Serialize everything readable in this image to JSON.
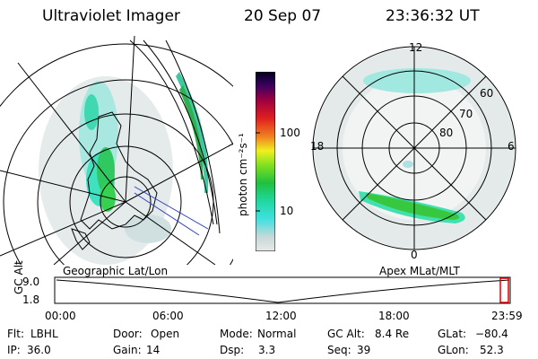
{
  "header": {
    "instrument": "Ultraviolet Imager",
    "date": "20 Sep 07",
    "time": "23:36:32 UT"
  },
  "left_map": {
    "label": "Geographic Lat/Lon"
  },
  "right_map": {
    "label": "Apex MLat/MLT",
    "clock_labels": {
      "top": "12",
      "bottom": "0",
      "left": "18",
      "right": "6"
    },
    "lat_labels": [
      "60",
      "70",
      "80"
    ]
  },
  "colorbar": {
    "unit_label": "photon cm⁻²s⁻¹",
    "ticks": [
      "100",
      "10"
    ],
    "scale": "log",
    "colors": [
      "#e8e8e8",
      "#c8d8d8",
      "#40e0e0",
      "#20d8a0",
      "#20c040",
      "#80e020",
      "#f0f020",
      "#f08020",
      "#e02020",
      "#a00040",
      "#400060",
      "#000020"
    ]
  },
  "altitude_plot": {
    "ylabel": "GC Alt",
    "yticks": [
      "9.0",
      "1.8"
    ],
    "xticks": [
      "00:00",
      "06:00",
      "12:00",
      "18:00",
      "23:59"
    ],
    "marker_color": "#e00000"
  },
  "info": {
    "row1": [
      {
        "label": "Flt:",
        "value": "LBHL"
      },
      {
        "label": "Door:",
        "value": "Open"
      },
      {
        "label": "Mode:",
        "value": "Normal"
      },
      {
        "label": "GC Alt:",
        "value": "8.4 Re"
      },
      {
        "label": "GLat:",
        "value": "−80.4"
      }
    ],
    "row2": [
      {
        "label": "IP:",
        "value": "36.0"
      },
      {
        "label": "Gain:",
        "value": "14"
      },
      {
        "label": "Dsp:",
        "value": "3.3"
      },
      {
        "label": "Seq:",
        "value": "39"
      },
      {
        "label": "GLon:",
        "value": "52.3"
      }
    ]
  }
}
